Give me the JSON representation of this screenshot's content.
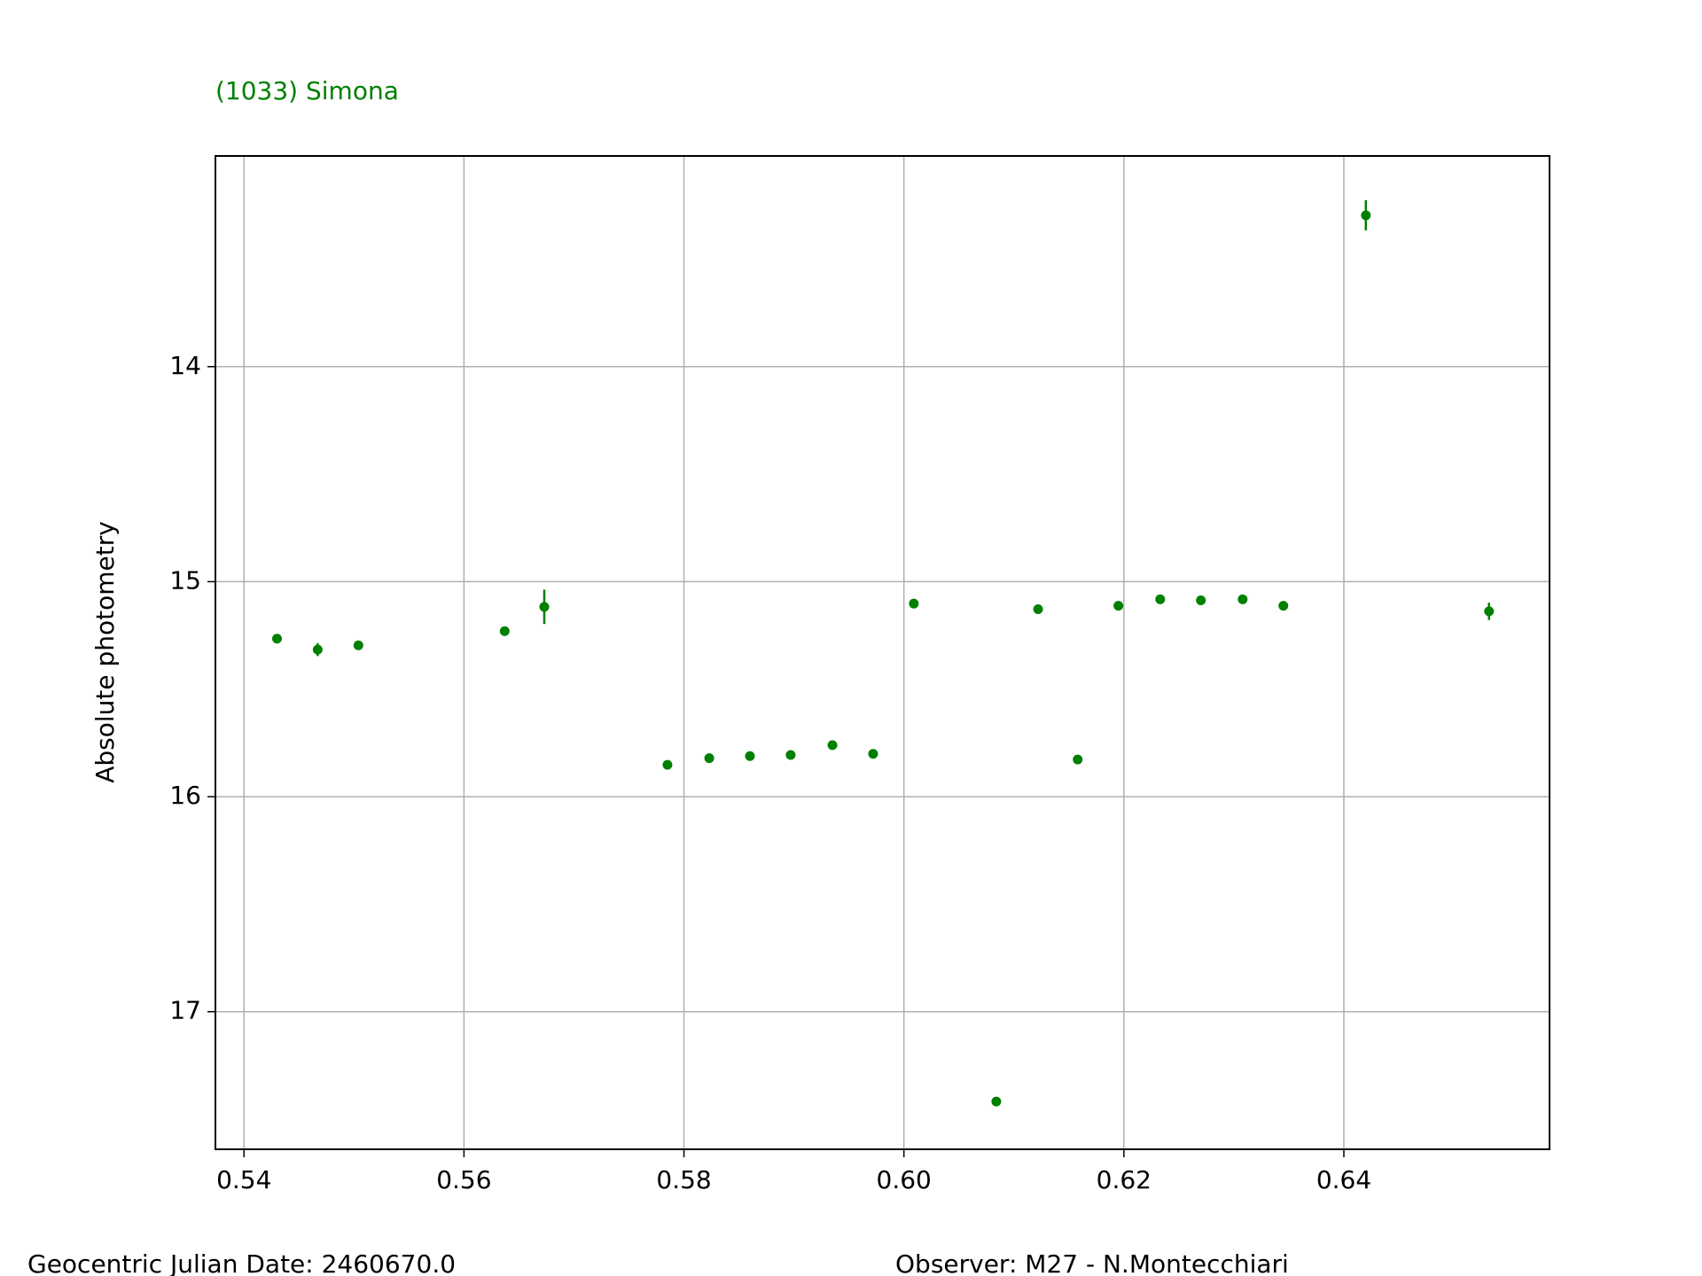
{
  "chart_data": {
    "type": "scatter",
    "title": "(1033) Simona",
    "ylabel": "Absolute photometry",
    "footer_left": "Geocentric Julian Date: 2460670.0",
    "footer_right": "Observer: M27 - N.Montecchiari",
    "color": "#008000",
    "grid": true,
    "x": [
      0.543,
      0.5467,
      0.5504,
      0.5637,
      0.5673,
      0.5785,
      0.5823,
      0.586,
      0.5897,
      0.5935,
      0.5972,
      0.6009,
      0.6084,
      0.6122,
      0.6158,
      0.6195,
      0.6233,
      0.627,
      0.6308,
      0.6345,
      0.642,
      0.6532
    ],
    "values": [
      15.265,
      15.316,
      15.296,
      15.23,
      15.117,
      15.852,
      15.821,
      15.811,
      15.806,
      15.76,
      15.801,
      15.102,
      17.418,
      15.128,
      15.827,
      15.112,
      15.082,
      15.087,
      15.082,
      15.112,
      13.296,
      15.138
    ],
    "errors": [
      0.01,
      0.03,
      0.01,
      0.01,
      0.08,
      0.01,
      0.01,
      0.01,
      0.01,
      0.01,
      0.01,
      0.01,
      0.01,
      0.01,
      0.01,
      0.01,
      0.01,
      0.01,
      0.01,
      0.01,
      0.07,
      0.04
    ],
    "xlim": [
      0.5374,
      0.6587
    ],
    "xticks": [
      {
        "value": 0.54,
        "label": "0.54"
      },
      {
        "value": 0.56,
        "label": "0.56"
      },
      {
        "value": 0.58,
        "label": "0.58"
      },
      {
        "value": 0.6,
        "label": "0.60"
      },
      {
        "value": 0.62,
        "label": "0.62"
      },
      {
        "value": 0.64,
        "label": "0.64"
      }
    ],
    "ylim": [
      17.64,
      13.02
    ],
    "yticks": [
      14,
      15,
      16,
      17
    ]
  }
}
